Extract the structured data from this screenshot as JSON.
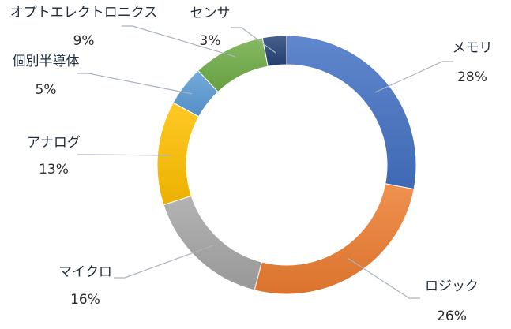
{
  "chart_data": {
    "type": "pie",
    "variant": "donut",
    "title": "",
    "legend": "none",
    "categories": [
      "メモリ",
      "ロジック",
      "マイクロ",
      "アナログ",
      "個別半導体",
      "オプトエレクトロニクス",
      "センサ"
    ],
    "values": [
      28,
      26,
      16,
      13,
      5,
      9,
      3
    ],
    "value_labels": [
      "28%",
      "26%",
      "16%",
      "13%",
      "5%",
      "9%",
      "3%"
    ],
    "colors": [
      "#4472C4",
      "#ED7D31",
      "#A5A5A5",
      "#FFC000",
      "#5B9BD5",
      "#70AD47",
      "#264478"
    ]
  }
}
